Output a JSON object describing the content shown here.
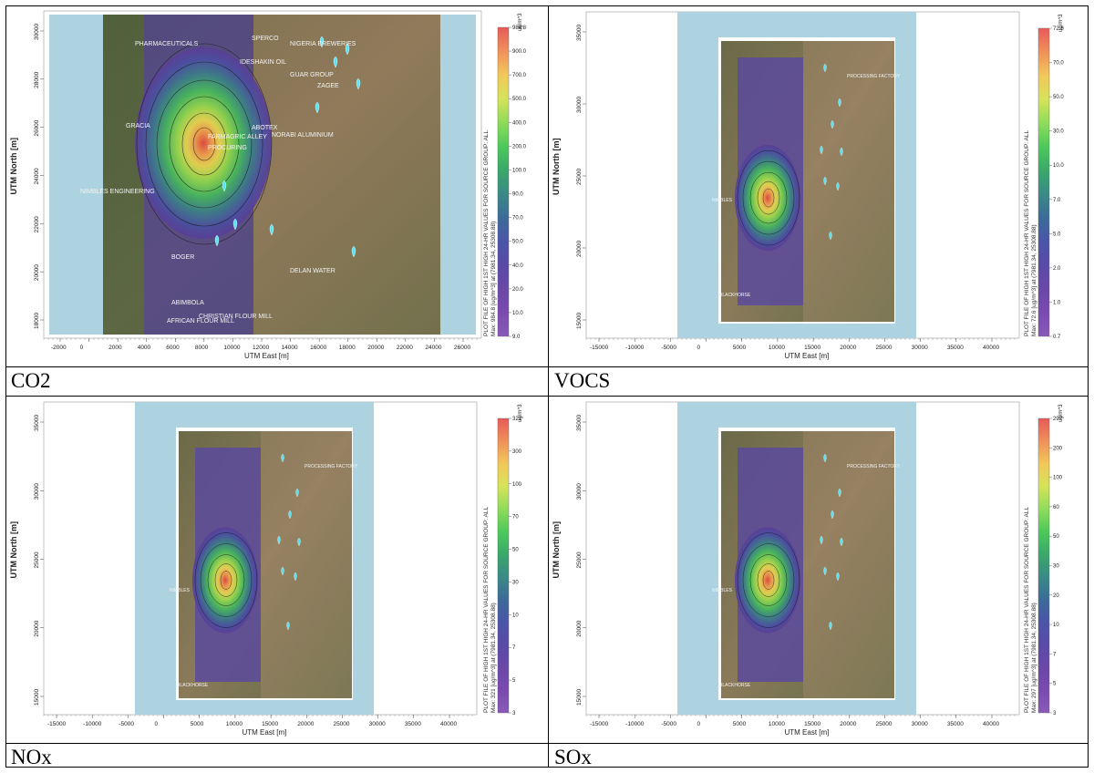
{
  "panels": [
    {
      "id": "co2",
      "caption": "CO2",
      "layout": "zoomed",
      "ylabel": "UTM North [m]",
      "xlabel": "UTM East [m]",
      "xticks": [
        "-2000",
        "0",
        "2000",
        "4000",
        "6000",
        "8000",
        "10000",
        "12000",
        "14000",
        "16000",
        "18000",
        "20000",
        "22000",
        "24000",
        "26000"
      ],
      "yticks": [
        "30000",
        "28000",
        "26000",
        "24000",
        "22000",
        "20000",
        "18000"
      ],
      "unit": "ug/m^3",
      "colorbar_title": "PLOT FILE OF HIGH 1ST HIGH 24-HR VALUES FOR SOURCE GROUP: ALL",
      "colorbar_max": "Max: 984.8 [ug/m^3] at (7981.34, 25308.88)",
      "levels": [
        "984.8",
        "900.0",
        "700.0",
        "500.0",
        "400.0",
        "200.0",
        "100.0",
        "90.0",
        "70.0",
        "50.0",
        "40.0",
        "20.0",
        "10.0",
        "9.0"
      ],
      "site_labels": [
        "PHARMACEUTICALS",
        "SPERCO",
        "NIGERIA BREWERIES",
        "IDESHAKIN OIL",
        "GUAR GROUP",
        "ZAGEE",
        "ABOTEX",
        "NORABI ALUMINIUM",
        "GRACIA",
        "FARMAGRIC ALLEY",
        "PROCURING",
        "NIMBLES ENGINEERING",
        "DELAN WATER",
        "BOGER",
        "ABIMBOLA",
        "CHRISTIAN FLOUR MILL",
        "AFRICAN FLOUR MILL"
      ]
    },
    {
      "id": "vocs",
      "caption": "VOCS",
      "layout": "wide",
      "ylabel": "UTM North [m]",
      "xlabel": "UTM East [m]",
      "xticks": [
        "-15000",
        "-10000",
        "-5000",
        "0",
        "5000",
        "10000",
        "15000",
        "20000",
        "25000",
        "30000",
        "35000",
        "40000"
      ],
      "yticks": [
        "35000",
        "30000",
        "25000",
        "20000",
        "15000"
      ],
      "unit": "ug/m^3",
      "colorbar_title": "PLOT FILE OF HIGH 1ST HIGH 24-HR VALUES FOR SOURCE GROUP: ALL",
      "colorbar_max": "Max: 72.6 [ug/m^3] at (7981.34, 25308.88)",
      "levels": [
        "72.6",
        "70.0",
        "50.0",
        "30.0",
        "10.0",
        "7.0",
        "5.0",
        "2.0",
        "1.0",
        "0.7"
      ],
      "site_labels": [
        "NIMBLES",
        "PROCESSING FACTORY",
        "BLACKHORSE"
      ]
    },
    {
      "id": "nox",
      "caption": "NOx",
      "layout": "wide",
      "ylabel": "UTM North [m]",
      "xlabel": "UTM East [m]",
      "xticks": [
        "-15000",
        "-10000",
        "-5000",
        "0",
        "5000",
        "10000",
        "15000",
        "20000",
        "25000",
        "30000",
        "35000",
        "40000"
      ],
      "yticks": [
        "35000",
        "30000",
        "25000",
        "20000",
        "15000"
      ],
      "unit": "ug/m^3",
      "colorbar_title": "PLOT FILE OF HIGH 1ST HIGH 24-HR VALUES FOR SOURCE GROUP: ALL",
      "colorbar_max": "Max: 321 [ug/m^3] at (7981.34, 25308.88)",
      "levels": [
        "321",
        "300",
        "100",
        "70",
        "50",
        "30",
        "10",
        "7",
        "5",
        "3"
      ],
      "site_labels": [
        "NIMBLES",
        "PROCESSING FACTORY",
        "BLACKHORSE"
      ]
    },
    {
      "id": "sox",
      "caption": "SOx",
      "layout": "wide",
      "ylabel": "UTM North [m]",
      "xlabel": "UTM East [m]",
      "xticks": [
        "-15000",
        "-10000",
        "-5000",
        "0",
        "5000",
        "10000",
        "15000",
        "20000",
        "25000",
        "30000",
        "35000",
        "40000"
      ],
      "yticks": [
        "35000",
        "30000",
        "25000",
        "20000",
        "15000"
      ],
      "unit": "ug/m^3",
      "colorbar_title": "PLOT FILE OF HIGH 1ST HIGH 24-HR VALUES FOR SOURCE GROUP: ALL",
      "colorbar_max": "Max: 297 [ug/m^3] at (7981.34, 25308.88)",
      "levels": [
        "297",
        "200",
        "100",
        "60",
        "50",
        "30",
        "20",
        "10",
        "7",
        "5",
        "3"
      ],
      "site_labels": [
        "NIMBLES",
        "PROCESSING FACTORY",
        "BLACKHORSE"
      ]
    }
  ],
  "colors": {
    "sky": "#add3e0",
    "ramp": [
      "#e85a5a",
      "#f0905a",
      "#f2c85a",
      "#d6e35a",
      "#8fdc5a",
      "#4cc95a",
      "#3aa86a",
      "#3a8a86",
      "#3c6b9a",
      "#4a55a8",
      "#5a4aa8",
      "#6a48a8",
      "#7a4ab0",
      "#8a5ab8"
    ]
  }
}
